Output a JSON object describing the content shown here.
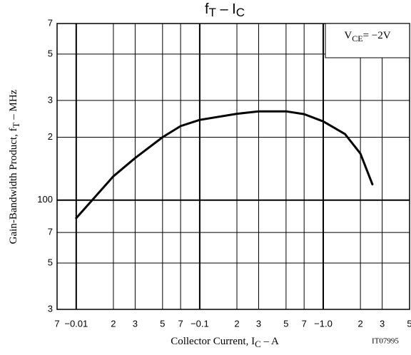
{
  "chart_data": {
    "type": "line",
    "title": [
      "f",
      "T",
      " – I",
      "C"
    ],
    "x_label": [
      "Collector Current, I",
      "C",
      " – A"
    ],
    "y_label": [
      "Gain-Bandwidth Product, f",
      "T",
      " – MHz"
    ],
    "annotation": [
      "V",
      "CE",
      "= −2V"
    ],
    "code": "IT07995",
    "x_scale": "log",
    "y_scale": "log",
    "grid": true,
    "xlim": [
      -0.007,
      -5
    ],
    "ylim": [
      30,
      700
    ],
    "xticks": [
      {
        "value": -0.007,
        "label": "7"
      },
      {
        "value": -0.01,
        "label": "−0.01"
      },
      {
        "value": -0.02,
        "label": "2"
      },
      {
        "value": -0.03,
        "label": "3"
      },
      {
        "value": -0.05,
        "label": "5"
      },
      {
        "value": -0.07,
        "label": "7"
      },
      {
        "value": -0.1,
        "label": "−0.1"
      },
      {
        "value": -0.2,
        "label": "2"
      },
      {
        "value": -0.3,
        "label": "3"
      },
      {
        "value": -0.5,
        "label": "5"
      },
      {
        "value": -0.7,
        "label": "7"
      },
      {
        "value": -1.0,
        "label": "−1.0"
      },
      {
        "value": -2,
        "label": "2"
      },
      {
        "value": -3,
        "label": "3"
      },
      {
        "value": -5,
        "label": "5"
      }
    ],
    "yticks": [
      {
        "value": 30,
        "label": "3"
      },
      {
        "value": 50,
        "label": "5"
      },
      {
        "value": 70,
        "label": "7"
      },
      100,
      {
        "value": 200,
        "label": "2"
      },
      {
        "value": 300,
        "label": "3"
      },
      {
        "value": 500,
        "label": "5"
      },
      {
        "value": 700,
        "label": "7"
      }
    ],
    "series": [
      {
        "color": "#000000",
        "x": [
          -0.01,
          -0.02,
          -0.03,
          -0.05,
          -0.07,
          -0.1,
          -0.2,
          -0.3,
          -0.5,
          -0.7,
          -1.0,
          -1.5,
          -2.0,
          -2.5
        ],
        "values": [
          82,
          130,
          159,
          200,
          226,
          242,
          259,
          266,
          266,
          258,
          238,
          207,
          167,
          119
        ]
      }
    ]
  }
}
